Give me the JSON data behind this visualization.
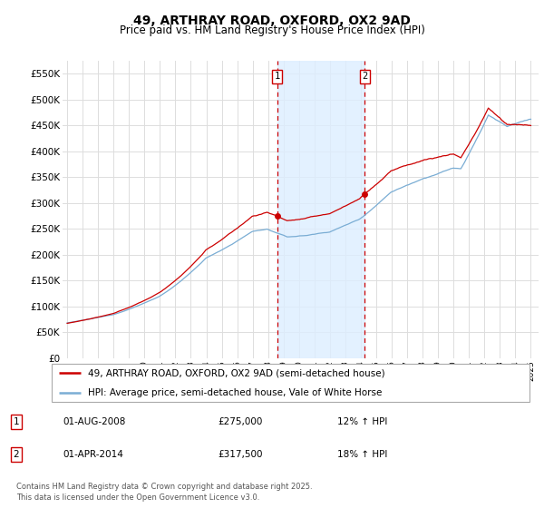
{
  "title": "49, ARTHRAY ROAD, OXFORD, OX2 9AD",
  "subtitle": "Price paid vs. HM Land Registry's House Price Index (HPI)",
  "ylabel_ticks": [
    "£0",
    "£50K",
    "£100K",
    "£150K",
    "£200K",
    "£250K",
    "£300K",
    "£350K",
    "£400K",
    "£450K",
    "£500K",
    "£550K"
  ],
  "ytick_values": [
    0,
    50000,
    100000,
    150000,
    200000,
    250000,
    300000,
    350000,
    400000,
    450000,
    500000,
    550000
  ],
  "xlim_start": 1994.7,
  "xlim_end": 2025.5,
  "ylim": [
    0,
    575000
  ],
  "sale1_date": 2008.58,
  "sale1_price": 275000,
  "sale2_date": 2014.25,
  "sale2_price": 317500,
  "legend_line1": "49, ARTHRAY ROAD, OXFORD, OX2 9AD (semi-detached house)",
  "legend_line2": "HPI: Average price, semi-detached house, Vale of White Horse",
  "ann1_date": "01-AUG-2008",
  "ann1_price": "£275,000",
  "ann1_hpi": "12% ↑ HPI",
  "ann2_date": "01-APR-2014",
  "ann2_price": "£317,500",
  "ann2_hpi": "18% ↑ HPI",
  "footnote": "Contains HM Land Registry data © Crown copyright and database right 2025.\nThis data is licensed under the Open Government Licence v3.0.",
  "line_color_red": "#cc0000",
  "line_color_blue": "#7aadd4",
  "shading_color": "#ddeeff",
  "annotation_box_color": "#cc0000",
  "grid_color": "#dddddd",
  "background_color": "#ffffff"
}
